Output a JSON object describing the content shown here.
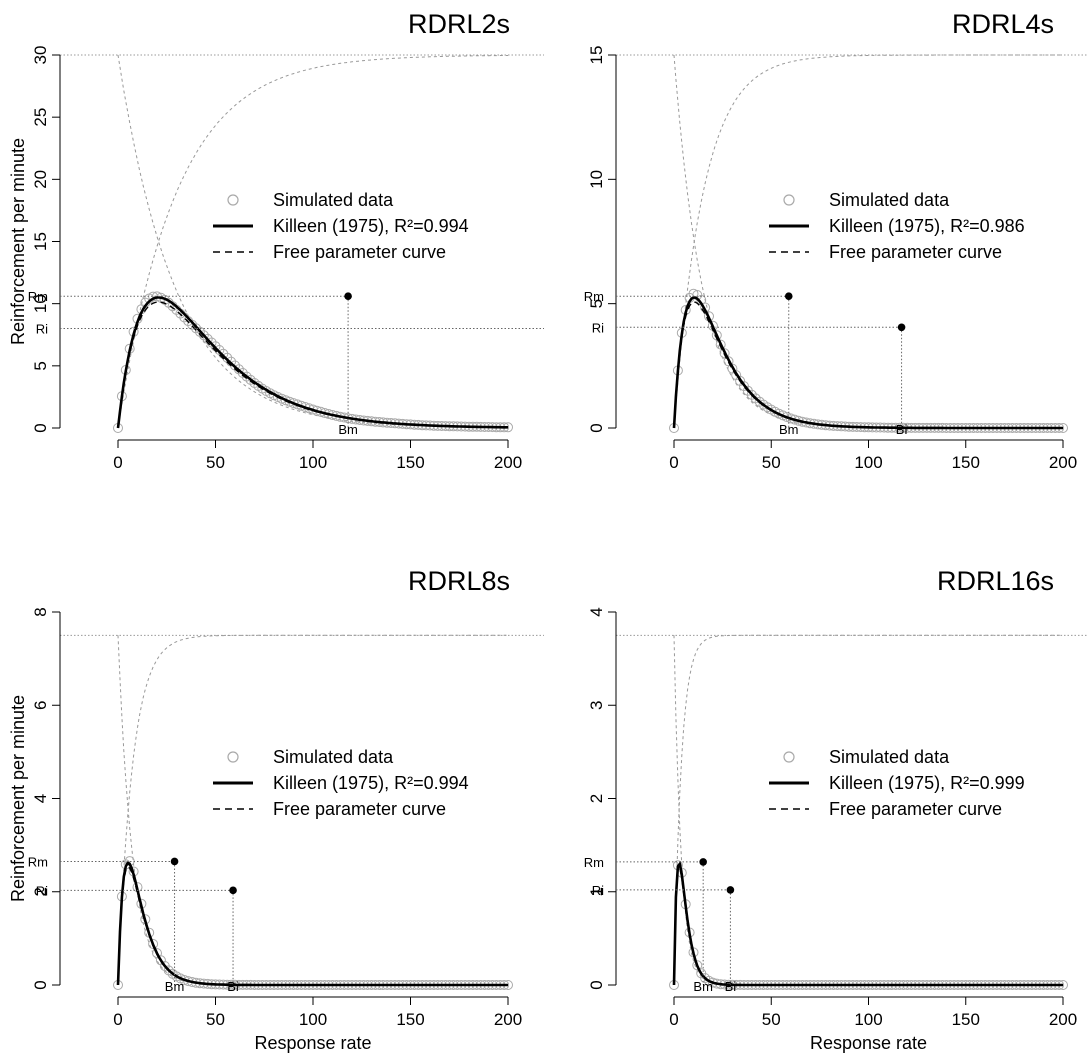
{
  "figure": {
    "xlabel": "Response rate",
    "ylabel": "Reinforcement per minute"
  },
  "legend": {
    "simulated_label": "Simulated data",
    "free_label": "Free parameter curve"
  },
  "markers": {
    "rm": "Rm",
    "ri": "Ri",
    "bm": "Bm",
    "bi": "Bi"
  },
  "colors": {
    "simulated_points": "#a9a9a9",
    "killeen_line": "#000000",
    "free_line": "#000000",
    "reference_lines": "#999999"
  },
  "chart_data": [
    {
      "type": "line",
      "title": "RDRL2s",
      "xlabel": "",
      "ylabel": "Reinforcement per minute",
      "xlim": [
        0,
        200
      ],
      "ylim": [
        0,
        30
      ],
      "xticks": [
        0,
        50,
        100,
        150,
        200
      ],
      "yticks": [
        0,
        5,
        10,
        15,
        20,
        25,
        30
      ],
      "params": {
        "tau": 2,
        "rmax": 30
      },
      "series": [
        {
          "name": "Simulated data",
          "kind": "points"
        },
        {
          "name": "Killeen (1975), R²=0.994",
          "kind": "solid"
        },
        {
          "name": "Free parameter curve",
          "kind": "dashed"
        }
      ],
      "points": {
        "max": {
          "x": 118,
          "y": 10.6,
          "label": "Rm",
          "xlabel": "Bm"
        },
        "inflection": {
          "x": null,
          "y": 8.0,
          "label": "Ri",
          "xlabel": null
        }
      },
      "legend": "center"
    },
    {
      "type": "line",
      "title": "RDRL4s",
      "xlabel": "",
      "ylabel": "",
      "xlim": [
        0,
        200
      ],
      "ylim": [
        0,
        15
      ],
      "xticks": [
        0,
        50,
        100,
        150,
        200
      ],
      "yticks": [
        0,
        5,
        10,
        15
      ],
      "params": {
        "tau": 4,
        "rmax": 15
      },
      "series": [
        {
          "name": "Simulated data",
          "kind": "points"
        },
        {
          "name": "Killeen (1975), R²=0.986",
          "kind": "solid"
        },
        {
          "name": "Free parameter curve",
          "kind": "dashed"
        }
      ],
      "points": {
        "max": {
          "x": 59,
          "y": 5.3,
          "label": "Rm",
          "xlabel": "Bm"
        },
        "inflection": {
          "x": 117,
          "y": 4.05,
          "label": "Ri",
          "xlabel": "Bi"
        }
      },
      "legend": "center"
    },
    {
      "type": "line",
      "title": "RDRL8s",
      "xlabel": "Response rate",
      "ylabel": "Reinforcement per minute",
      "xlim": [
        0,
        200
      ],
      "ylim": [
        0,
        8
      ],
      "xticks": [
        0,
        50,
        100,
        150,
        200
      ],
      "yticks": [
        0,
        2,
        4,
        6,
        8
      ],
      "params": {
        "tau": 8,
        "rmax": 7.5
      },
      "series": [
        {
          "name": "Simulated data",
          "kind": "points"
        },
        {
          "name": "Killeen (1975), R²=0.994",
          "kind": "solid"
        },
        {
          "name": "Free parameter curve",
          "kind": "dashed"
        }
      ],
      "points": {
        "max": {
          "x": 29,
          "y": 2.65,
          "label": "Rm",
          "xlabel": "Bm"
        },
        "inflection": {
          "x": 59,
          "y": 2.03,
          "label": "Ri",
          "xlabel": "Bi"
        }
      },
      "legend": "center"
    },
    {
      "type": "line",
      "title": "RDRL16s",
      "xlabel": "Response rate",
      "ylabel": "",
      "xlim": [
        0,
        200
      ],
      "ylim": [
        0,
        4
      ],
      "xticks": [
        0,
        50,
        100,
        150,
        200
      ],
      "yticks": [
        0,
        1,
        2,
        3,
        4
      ],
      "params": {
        "tau": 16,
        "rmax": 3.75
      },
      "series": [
        {
          "name": "Simulated data",
          "kind": "points"
        },
        {
          "name": "Killeen (1975), R²=0.999",
          "kind": "solid"
        },
        {
          "name": "Free parameter curve",
          "kind": "dashed"
        }
      ],
      "points": {
        "max": {
          "x": 15,
          "y": 1.32,
          "label": "Rm",
          "xlabel": "Bm"
        },
        "inflection": {
          "x": 29,
          "y": 1.02,
          "label": "Ri",
          "xlabel": "Bi"
        }
      },
      "legend": "center"
    }
  ]
}
